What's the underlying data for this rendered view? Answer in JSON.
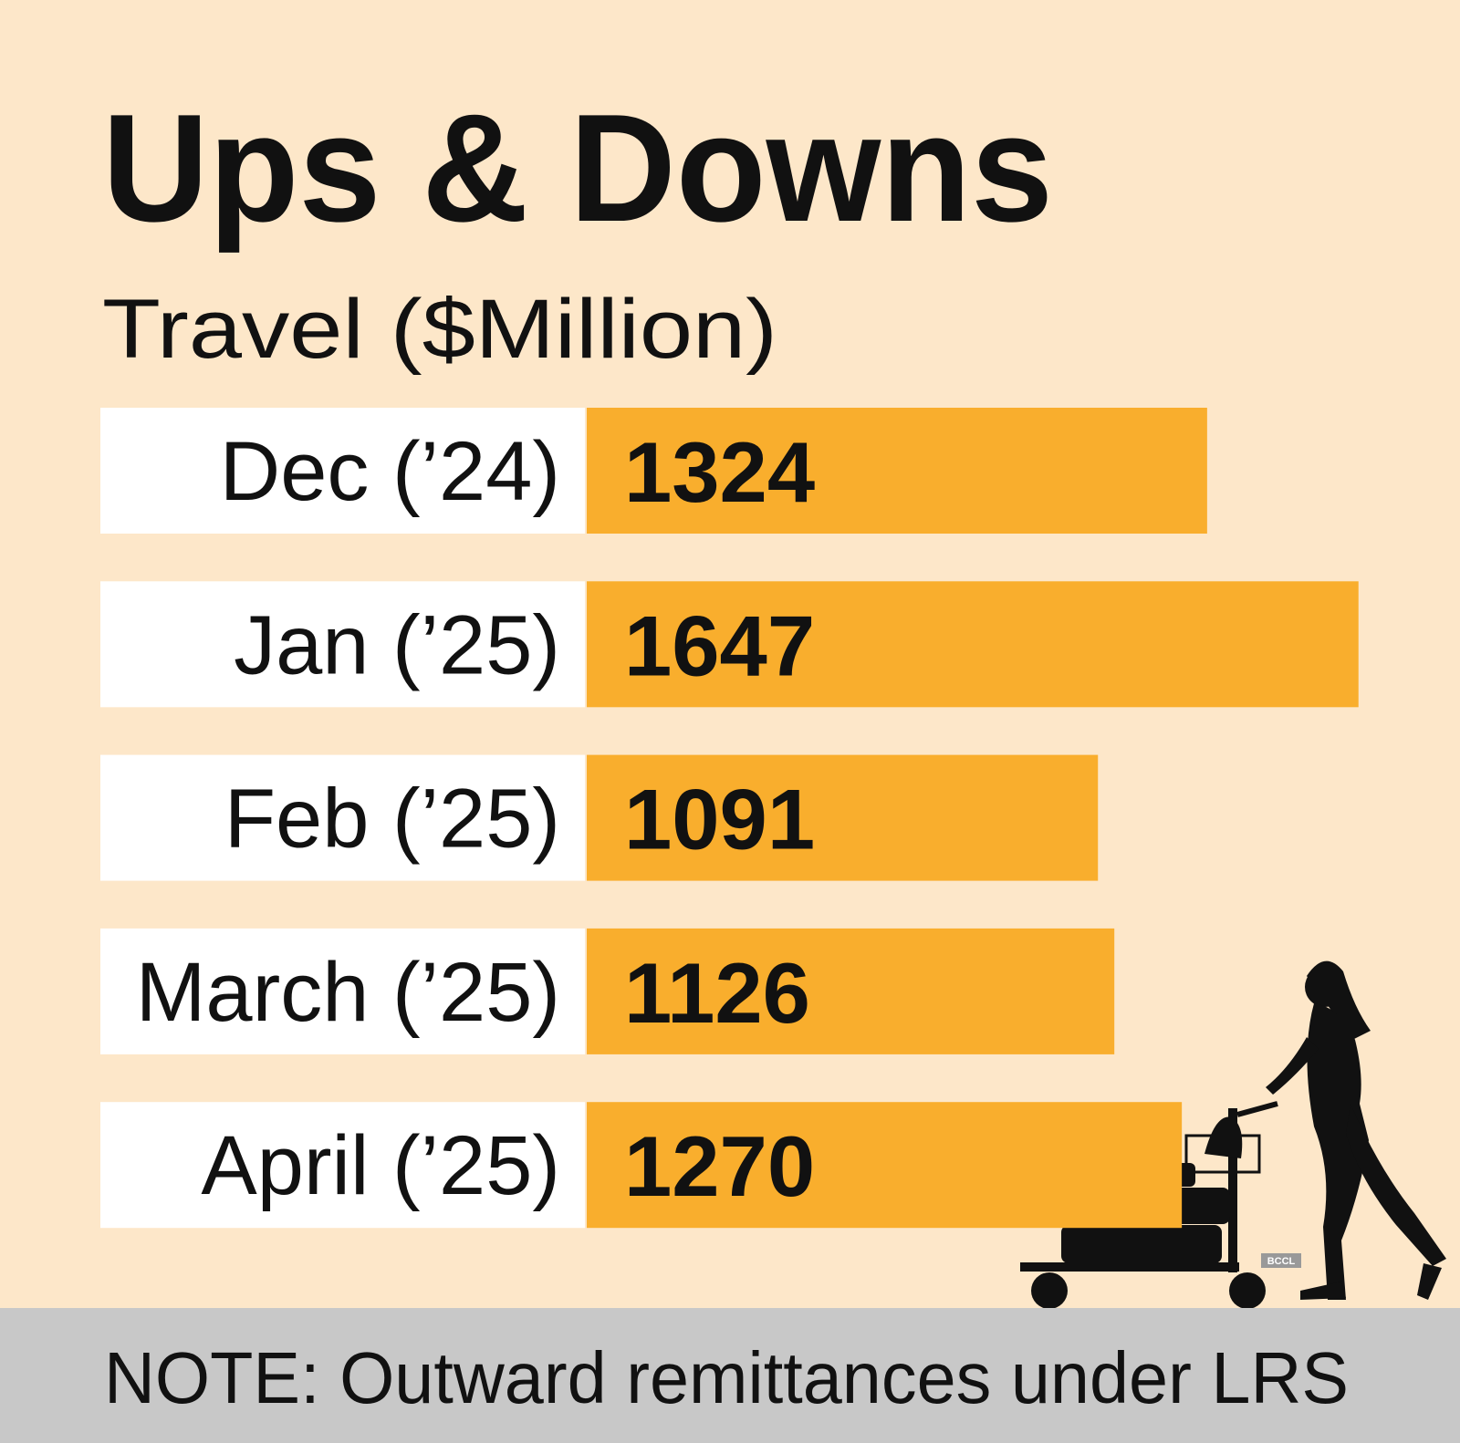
{
  "chart_data": {
    "type": "bar",
    "orientation": "horizontal",
    "title": "Ups & Downs",
    "subtitle": "Travel ($Million)",
    "categories": [
      "Dec (’24)",
      "Jan (’25)",
      "Feb (’25)",
      "March (’25)",
      "April (’25)"
    ],
    "values": [
      1324,
      1647,
      1091,
      1126,
      1270
    ],
    "color": "#f9ae2d",
    "note": "NOTE: Outward remittances under LRS",
    "credit": "BCCL"
  }
}
